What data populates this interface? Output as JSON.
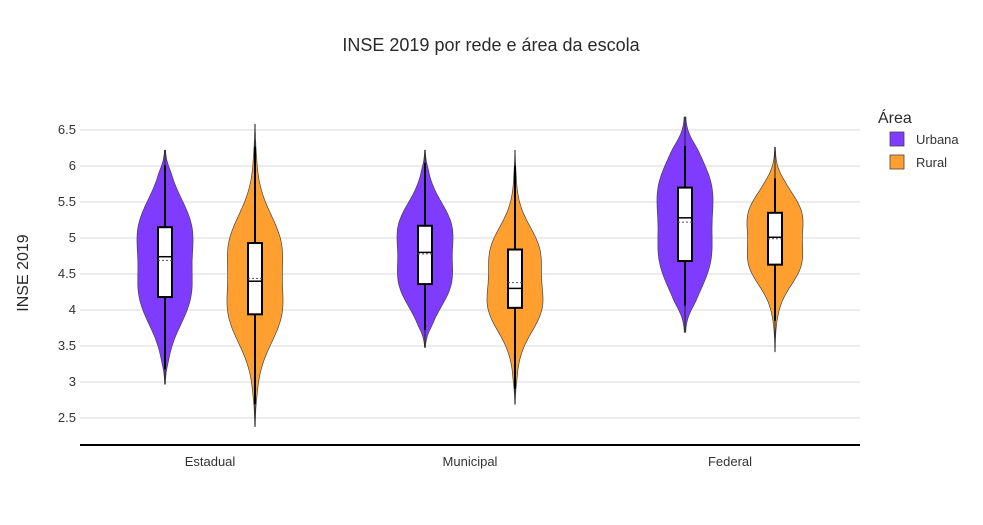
{
  "chart_data": {
    "type": "violin",
    "title": "INSE 2019 por rede e área da escola",
    "ylabel": "INSE 2019",
    "xlabel": "",
    "ylim": [
      2.3,
      6.8
    ],
    "yticks": [
      "2.5",
      "3",
      "3.5",
      "4",
      "4.5",
      "5",
      "5.5",
      "6",
      "6.5"
    ],
    "grid": true,
    "legend": {
      "title": "Área",
      "position": "right"
    },
    "categories": [
      "Estadual",
      "Municipal",
      "Federal"
    ],
    "series": [
      {
        "name": "Urbana",
        "color": "#7f3cff",
        "groups": [
          {
            "min": 2.97,
            "q1": 4.18,
            "median": 4.74,
            "mean": 4.69,
            "q3": 5.15,
            "max": 6.22,
            "whisker_low": 3.18,
            "whisker_high": 6.01
          },
          {
            "min": 3.48,
            "q1": 4.36,
            "median": 4.8,
            "mean": 4.78,
            "q3": 5.17,
            "max": 6.22,
            "whisker_low": 3.72,
            "whisker_high": 6.04
          },
          {
            "min": 3.69,
            "q1": 4.68,
            "median": 5.28,
            "mean": 5.22,
            "q3": 5.7,
            "max": 6.68,
            "whisker_low": 4.06,
            "whisker_high": 6.28
          }
        ]
      },
      {
        "name": "Rural",
        "color": "#ff9f30",
        "groups": [
          {
            "min": 2.38,
            "q1": 3.94,
            "median": 4.4,
            "mean": 4.44,
            "q3": 4.93,
            "max": 6.58,
            "whisker_low": 2.69,
            "whisker_high": 6.27
          },
          {
            "min": 2.69,
            "q1": 4.03,
            "median": 4.3,
            "mean": 4.38,
            "q3": 4.84,
            "max": 6.22,
            "whisker_low": 2.9,
            "whisker_high": 6.0
          },
          {
            "min": 3.42,
            "q1": 4.63,
            "median": 5.01,
            "mean": 4.99,
            "q3": 5.35,
            "max": 6.26,
            "whisker_low": 3.85,
            "whisker_high": 5.83
          }
        ]
      }
    ]
  }
}
